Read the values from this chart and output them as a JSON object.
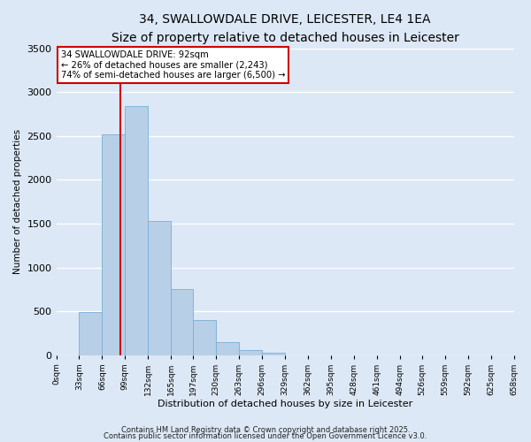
{
  "title": "34, SWALLOWDALE DRIVE, LEICESTER, LE4 1EA",
  "subtitle": "Size of property relative to detached houses in Leicester",
  "xlabel": "Distribution of detached houses by size in Leicester",
  "ylabel": "Number of detached properties",
  "bin_edges": [
    0,
    33,
    66,
    99,
    132,
    165,
    197,
    230,
    263,
    296,
    329,
    362,
    395,
    428,
    461,
    494,
    526,
    559,
    592,
    625,
    658
  ],
  "bin_labels": [
    "0sqm",
    "33sqm",
    "66sqm",
    "99sqm",
    "132sqm",
    "165sqm",
    "197sqm",
    "230sqm",
    "263sqm",
    "296sqm",
    "329sqm",
    "362sqm",
    "395sqm",
    "428sqm",
    "461sqm",
    "494sqm",
    "526sqm",
    "559sqm",
    "592sqm",
    "625sqm",
    "658sqm"
  ],
  "counts": [
    0,
    490,
    2520,
    2840,
    1530,
    750,
    400,
    145,
    60,
    30,
    0,
    0,
    0,
    0,
    0,
    0,
    0,
    0,
    0,
    0
  ],
  "bar_color": "#b8cfe8",
  "bar_edge_color": "#7aaed6",
  "property_line_x": 92,
  "property_line_color": "#cc0000",
  "annotation_title": "34 SWALLOWDALE DRIVE: 92sqm",
  "annotation_line1": "← 26% of detached houses are smaller (2,243)",
  "annotation_line2": "74% of semi-detached houses are larger (6,500) →",
  "annotation_box_facecolor": "#ffffff",
  "annotation_box_edgecolor": "#cc0000",
  "ylim": [
    0,
    3500
  ],
  "background_color": "#dce8f5",
  "grid_color": "#ffffff",
  "footer1": "Contains HM Land Registry data © Crown copyright and database right 2025.",
  "footer2": "Contains public sector information licensed under the Open Government Licence v3.0."
}
